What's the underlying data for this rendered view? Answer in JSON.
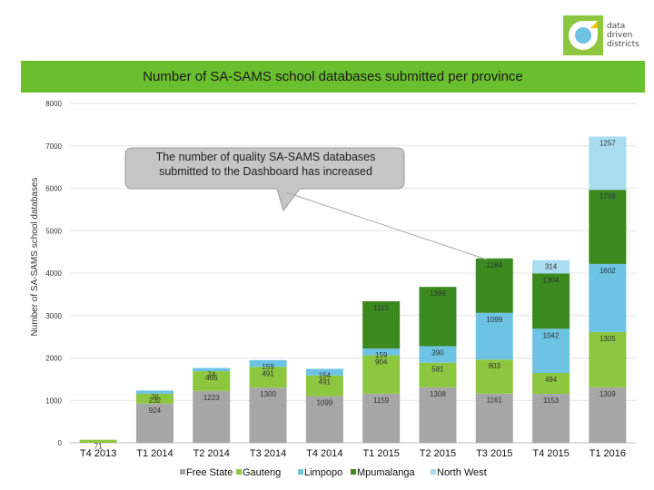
{
  "logo": {
    "lines": [
      "data",
      "driven",
      "districts"
    ]
  },
  "header": {
    "title": "Number of SA-SAMS school databases submitted per province"
  },
  "callout": {
    "text": "The number of quality SA-SAMS databases submitted to the Dashboard has increased"
  },
  "chart_data": {
    "type": "bar",
    "stacked": true,
    "title": "Number of SA-SAMS school databases submitted per province",
    "ylabel": "Number of SA-SAMS school databases",
    "xlabel": "",
    "ylim": [
      0,
      8000
    ],
    "yticks": [
      0,
      1000,
      2000,
      3000,
      4000,
      5000,
      6000,
      7000,
      8000
    ],
    "grid": true,
    "legend": "bottom",
    "categories": [
      "T4 2013",
      "T1 2014",
      "T2 2014",
      "T3 2014",
      "T4 2014",
      "T1 2015",
      "T2 2015",
      "T3 2015",
      "T4 2015",
      "T1 2016"
    ],
    "series": [
      {
        "name": "Free State",
        "color": "#a6a6a6",
        "values": [
          0,
          924,
          1223,
          1300,
          1099,
          1159,
          1308,
          1161,
          1153,
          1309
        ]
      },
      {
        "name": "Gauteng",
        "color": "#8dc63f",
        "values": [
          71,
          232,
          466,
          491,
          491,
          904,
          581,
          803,
          494,
          1305
        ]
      },
      {
        "name": "Limpopo",
        "color": "#6cc3e4",
        "values": [
          0,
          76,
          74,
          159,
          154,
          159,
          390,
          1099,
          1042,
          1602
        ]
      },
      {
        "name": "Mpumalanga",
        "color": "#3a8a1f",
        "values": [
          0,
          0,
          0,
          0,
          0,
          1115,
          1396,
          1284,
          1304,
          1748
        ]
      },
      {
        "name": "North West",
        "color": "#a9dcef",
        "values": [
          0,
          0,
          0,
          0,
          0,
          0,
          0,
          0,
          314,
          1257
        ]
      }
    ]
  }
}
